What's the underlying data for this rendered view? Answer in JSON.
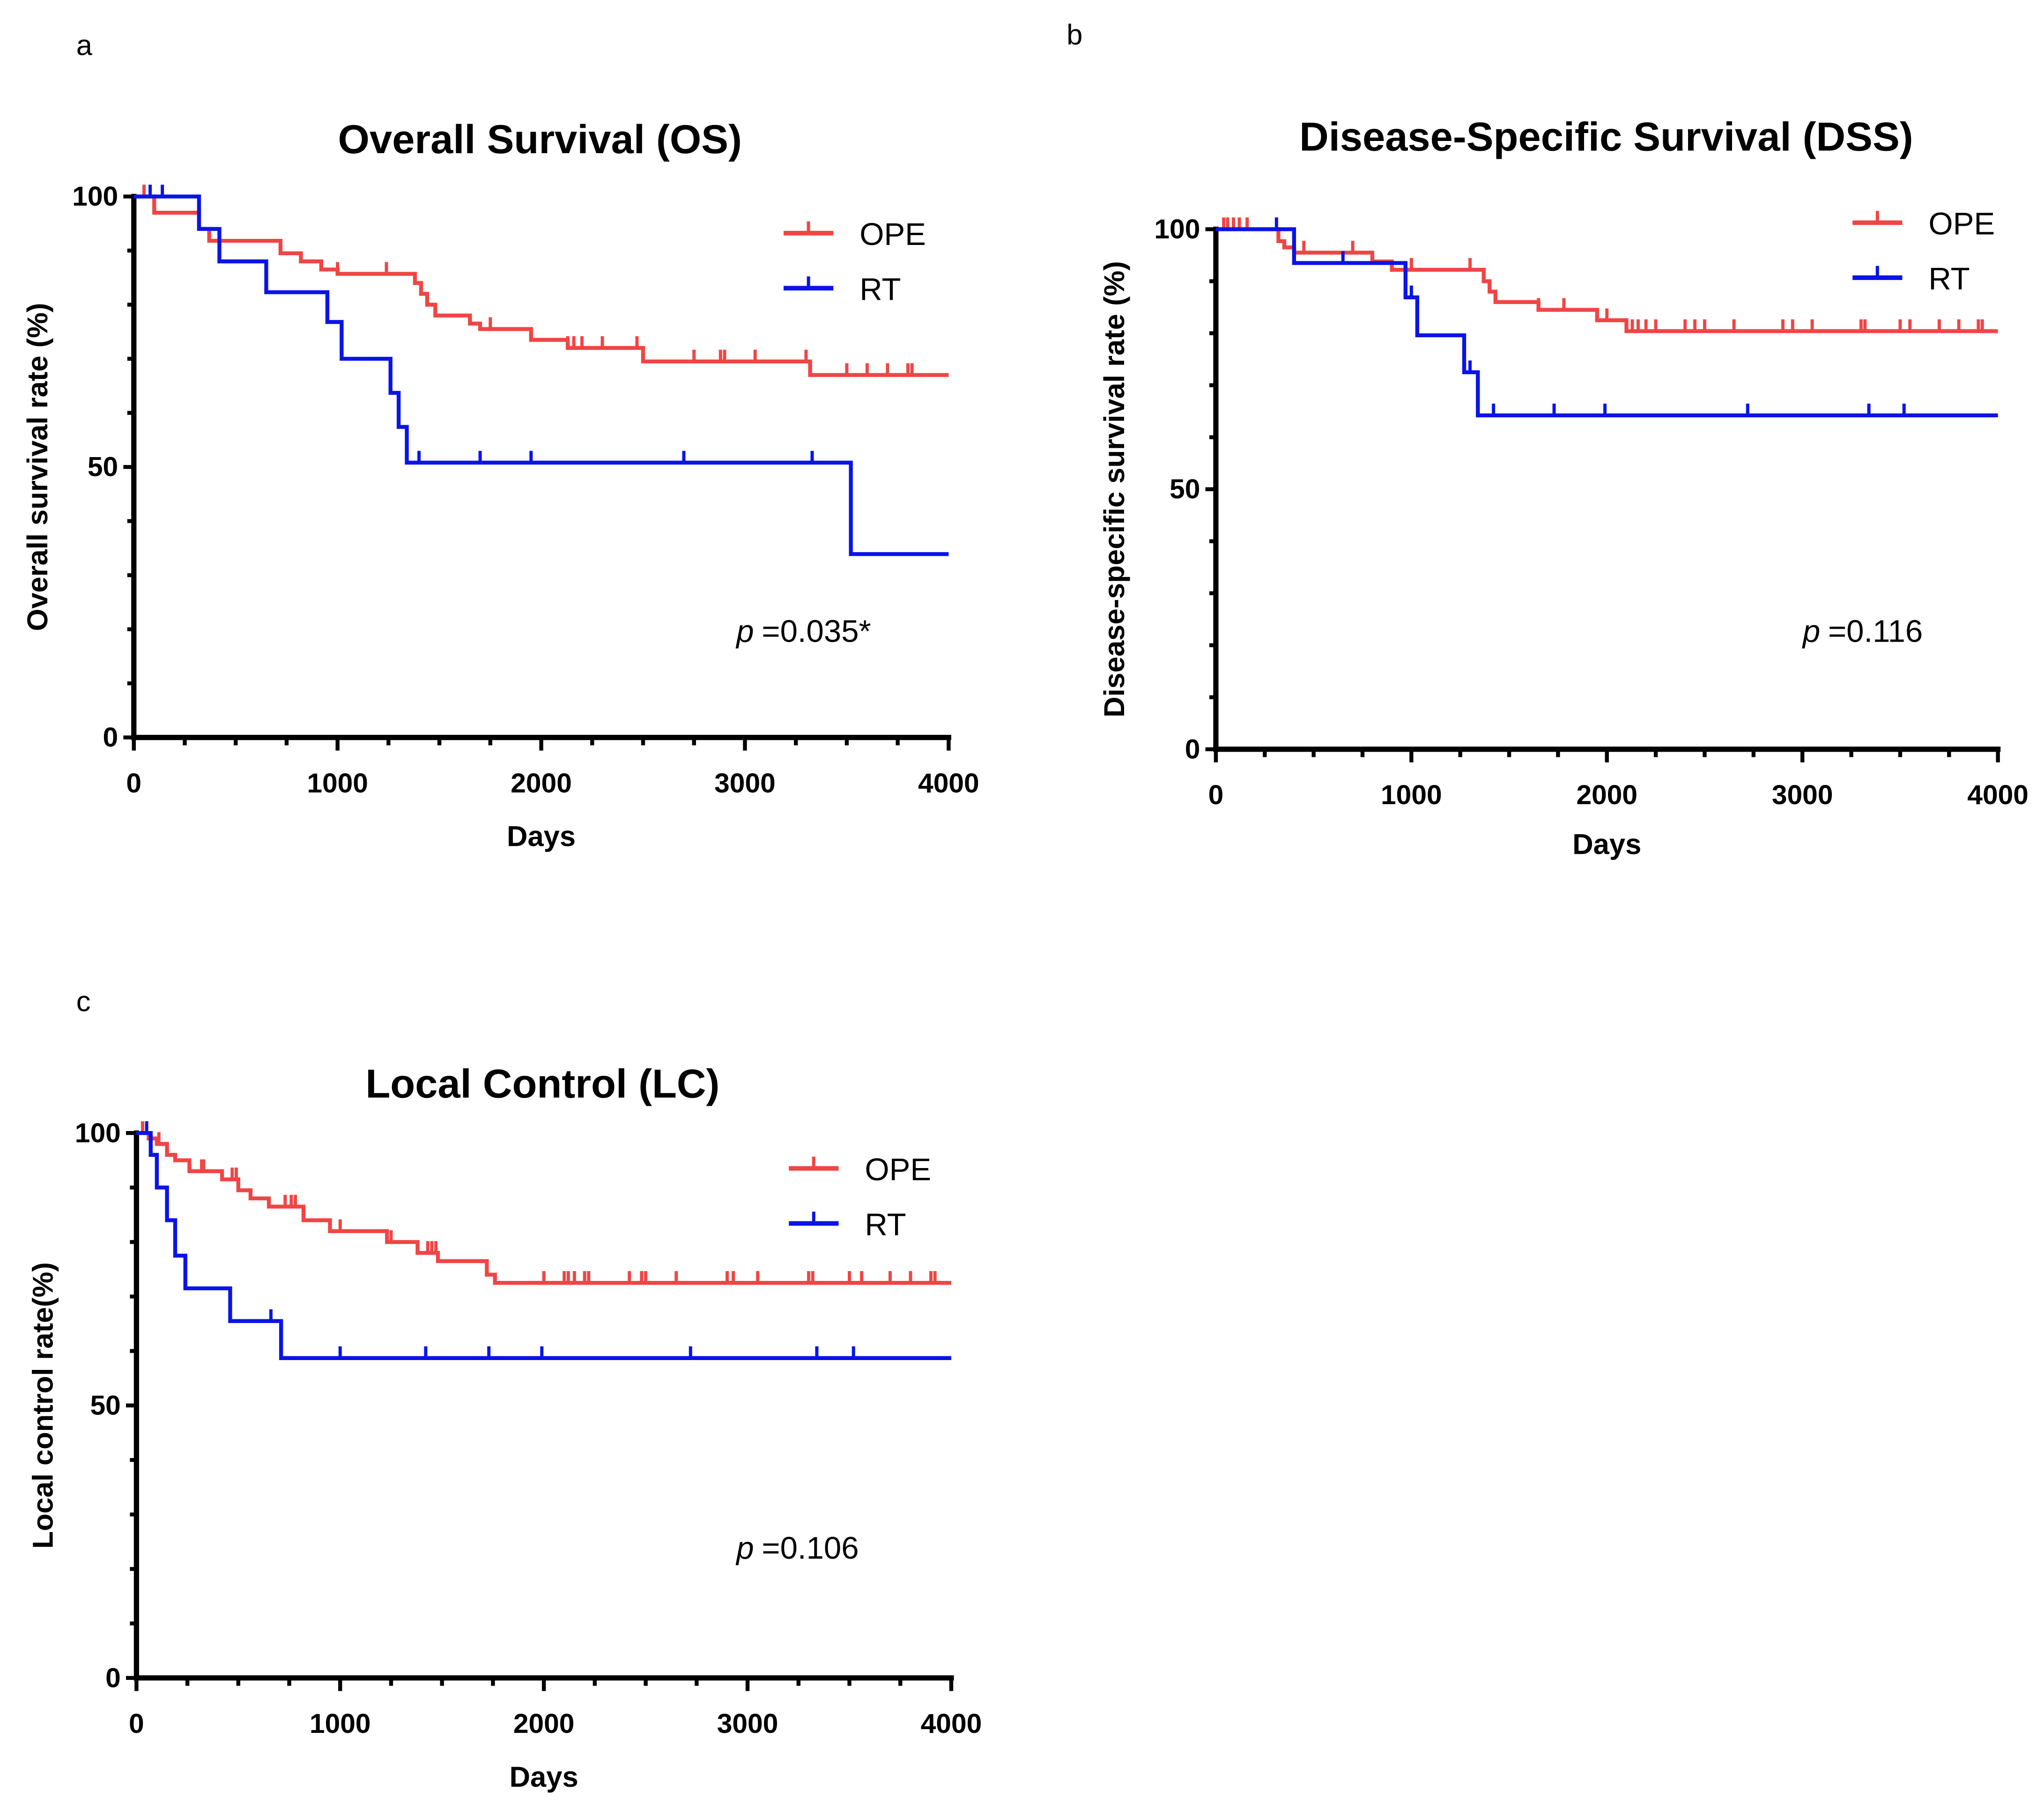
{
  "chart_data": [
    {
      "panel": "a",
      "type": "line",
      "subtype": "kaplan-meier",
      "title": "Overall Survival (OS)",
      "xlabel": "Days",
      "ylabel": "Overall survival rate (%)",
      "xlim": [
        0,
        4000
      ],
      "ylim": [
        0,
        100
      ],
      "xticks": [
        "0",
        "1000",
        "2000",
        "3000",
        "4000"
      ],
      "yticks": [
        "0",
        "50",
        "100"
      ],
      "legend_position": "top-right",
      "annotation": {
        "p_label": "p",
        "p_value": "=0.035*"
      },
      "series": [
        {
          "name": "OPE",
          "color": "#f04545",
          "steps": [
            [
              0,
              100
            ],
            [
              100,
              97
            ],
            [
              320,
              94
            ],
            [
              370,
              91.8
            ],
            [
              720,
              89.5
            ],
            [
              820,
              88
            ],
            [
              920,
              86.5
            ],
            [
              1000,
              85.7
            ],
            [
              1380,
              84
            ],
            [
              1410,
              82
            ],
            [
              1440,
              80
            ],
            [
              1480,
              78
            ],
            [
              1650,
              76.5
            ],
            [
              1700,
              75.5
            ],
            [
              1950,
              73.5
            ],
            [
              2130,
              72
            ],
            [
              2500,
              69.5
            ],
            [
              3320,
              67
            ],
            [
              4000,
              67
            ]
          ],
          "censored": [
            50,
            1000,
            1240,
            1750,
            1950,
            2130,
            2160,
            2200,
            2300,
            2470,
            2750,
            2880,
            2900,
            3050,
            3300,
            3320,
            3500,
            3600,
            3700,
            3800,
            3820
          ]
        },
        {
          "name": "RT",
          "color": "#0a14e6",
          "steps": [
            [
              0,
              100
            ],
            [
              320,
              94
            ],
            [
              420,
              88
            ],
            [
              650,
              82.3
            ],
            [
              950,
              76.8
            ],
            [
              1020,
              70
            ],
            [
              1260,
              63.7
            ],
            [
              1300,
              57.4
            ],
            [
              1340,
              50.8
            ],
            [
              3520,
              33.9
            ],
            [
              4000,
              33.9
            ]
          ],
          "censored": [
            80,
            140,
            1400,
            1700,
            1950,
            2700,
            3330
          ]
        }
      ]
    },
    {
      "panel": "b",
      "type": "line",
      "subtype": "kaplan-meier",
      "title": "Disease-Specific Survival (DSS)",
      "xlabel": "Days",
      "ylabel": "Disease-specific survival rate (%)",
      "xlim": [
        0,
        4000
      ],
      "ylim": [
        0,
        100
      ],
      "xticks": [
        "0",
        "1000",
        "2000",
        "3000",
        "4000"
      ],
      "yticks": [
        "0",
        "50",
        "100"
      ],
      "legend_position": "top-right",
      "annotation": {
        "p_label": "p",
        "p_value": "=0.116"
      },
      "series": [
        {
          "name": "OPE",
          "color": "#f04545",
          "steps": [
            [
              0,
              100
            ],
            [
              320,
              97.7
            ],
            [
              350,
              96.5
            ],
            [
              400,
              95.5
            ],
            [
              800,
              93.8
            ],
            [
              900,
              92.2
            ],
            [
              1370,
              90
            ],
            [
              1400,
              88
            ],
            [
              1430,
              86
            ],
            [
              1650,
              84.5
            ],
            [
              1950,
              82.5
            ],
            [
              2100,
              80.4
            ],
            [
              4000,
              80.4
            ]
          ],
          "censored": [
            40,
            60,
            90,
            120,
            160,
            450,
            700,
            1000,
            1300,
            1650,
            1780,
            2000,
            2130,
            2160,
            2200,
            2250,
            2400,
            2450,
            2500,
            2650,
            2900,
            2950,
            3050,
            3300,
            3320,
            3500,
            3550,
            3700,
            3800,
            3900,
            3920
          ]
        },
        {
          "name": "RT",
          "color": "#0a14e6",
          "steps": [
            [
              0,
              100
            ],
            [
              400,
              93.5
            ],
            [
              970,
              86.9
            ],
            [
              1030,
              79.6
            ],
            [
              1270,
              72.5
            ],
            [
              1340,
              64.2
            ],
            [
              4000,
              64.2
            ]
          ],
          "censored": [
            310,
            650,
            1000,
            1300,
            1420,
            1730,
            1990,
            2720,
            3340,
            3520
          ]
        }
      ]
    },
    {
      "panel": "c",
      "type": "line",
      "subtype": "kaplan-meier",
      "title": "Local Control (LC)",
      "xlabel": "Days",
      "ylabel": "Local control rate(%)",
      "xlim": [
        0,
        4000
      ],
      "ylim": [
        0,
        100
      ],
      "xticks": [
        "0",
        "1000",
        "2000",
        "3000",
        "4000"
      ],
      "yticks": [
        "0",
        "50",
        "100"
      ],
      "legend_position": "top-right",
      "annotation": {
        "p_label": "p",
        "p_value": "=0.106"
      },
      "series": [
        {
          "name": "OPE",
          "color": "#f04545",
          "steps": [
            [
              0,
              100
            ],
            [
              60,
              99
            ],
            [
              100,
              98
            ],
            [
              150,
              96
            ],
            [
              190,
              95
            ],
            [
              260,
              93
            ],
            [
              420,
              91.5
            ],
            [
              500,
              89.5
            ],
            [
              560,
              88
            ],
            [
              650,
              86.5
            ],
            [
              820,
              84
            ],
            [
              950,
              82
            ],
            [
              1230,
              80
            ],
            [
              1380,
              78
            ],
            [
              1480,
              76.5
            ],
            [
              1720,
              74
            ],
            [
              1760,
              72.5
            ],
            [
              4000,
              72.5
            ]
          ],
          "censored": [
            30,
            110,
            320,
            330,
            470,
            490,
            730,
            760,
            780,
            950,
            1000,
            1250,
            1430,
            1450,
            1470,
            2000,
            2100,
            2120,
            2150,
            2200,
            2220,
            2420,
            2480,
            2500,
            2650,
            2900,
            2930,
            3050,
            3300,
            3320,
            3500,
            3560,
            3700,
            3800,
            3900,
            3920
          ]
        },
        {
          "name": "RT",
          "color": "#0a14e6",
          "steps": [
            [
              0,
              100
            ],
            [
              70,
              96
            ],
            [
              100,
              90
            ],
            [
              150,
              84
            ],
            [
              190,
              77.5
            ],
            [
              240,
              71.5
            ],
            [
              460,
              65.5
            ],
            [
              710,
              58.7
            ],
            [
              4000,
              58.7
            ]
          ],
          "censored": [
            50,
            660,
            1000,
            1420,
            1730,
            1990,
            2720,
            3340,
            3520
          ]
        }
      ]
    }
  ]
}
